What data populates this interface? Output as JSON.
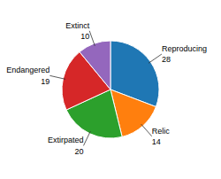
{
  "chart_data": {
    "type": "pie",
    "categories": [
      "Reproducing",
      "Relic",
      "Extirpated",
      "Endangered",
      "Extinct"
    ],
    "values": [
      28,
      14,
      20,
      19,
      10
    ],
    "data_labels": true
  }
}
